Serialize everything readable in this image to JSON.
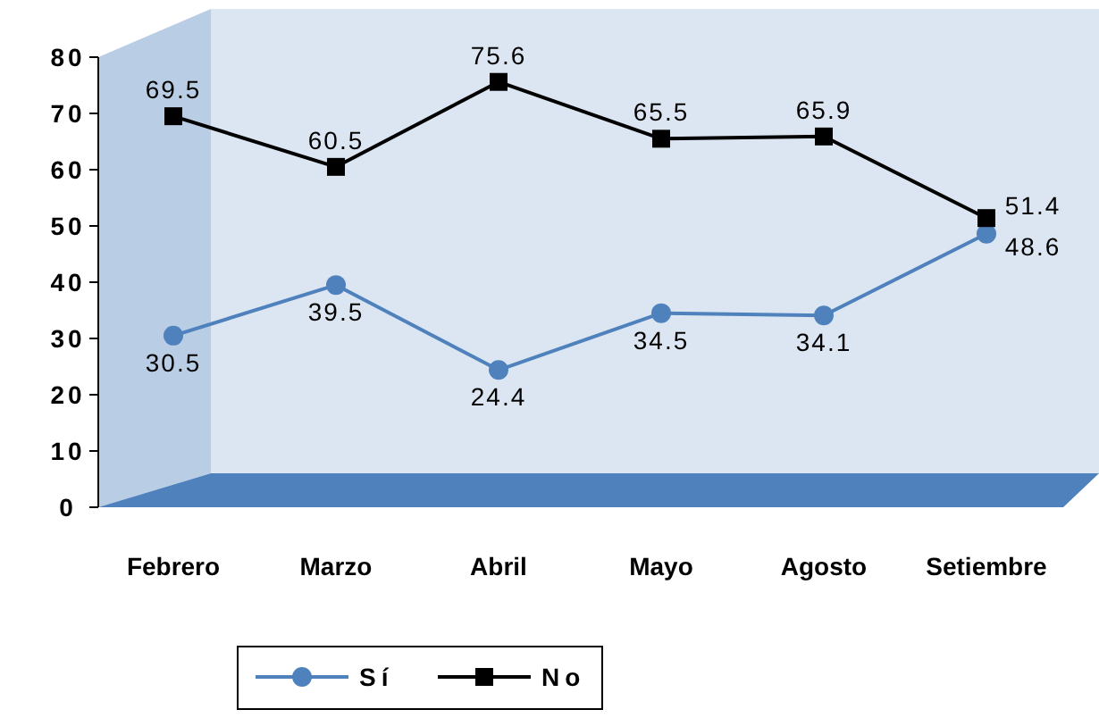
{
  "chart_data": {
    "type": "line",
    "categories": [
      "Febrero",
      "Marzo",
      "Abril",
      "Mayo",
      "Agosto",
      "Setiembre"
    ],
    "series": [
      {
        "name": "Sí",
        "color": "#4f81bd",
        "values": [
          30.5,
          39.5,
          24.4,
          34.5,
          34.1,
          48.6
        ],
        "marker": "circle"
      },
      {
        "name": "No",
        "color": "#000000",
        "values": [
          69.5,
          60.5,
          75.6,
          65.5,
          65.9,
          51.4
        ],
        "marker": "square"
      }
    ],
    "ylim": [
      0,
      80
    ],
    "yticks": [
      0,
      10,
      20,
      30,
      40,
      50,
      60,
      70,
      80
    ],
    "data_labels": true,
    "legend": "bottom",
    "grid": false
  }
}
